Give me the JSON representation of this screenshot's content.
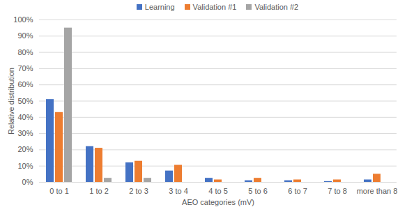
{
  "chart_data": {
    "type": "bar",
    "x_label": "AEO categories (mV)",
    "y_label": "Relative distribution",
    "categories": [
      "0 to 1",
      "1 to 2",
      "2 to 3",
      "3 to 4",
      "4 to 5",
      "5 to 6",
      "6 to 7",
      "7 to 8",
      "more than 8"
    ],
    "series": [
      {
        "name": "Learning",
        "color": "#4472c4",
        "values": [
          51,
          22,
          12,
          7,
          2.5,
          1,
          1,
          0.5,
          1.5
        ]
      },
      {
        "name": "Validation #1",
        "color": "#ed7d31",
        "values": [
          43,
          21,
          13,
          10.5,
          1.5,
          2.5,
          1.5,
          1.5,
          5
        ]
      },
      {
        "name": "Validation #2",
        "color": "#a5a5a5",
        "values": [
          95,
          2.5,
          2.5,
          0,
          0,
          0,
          0,
          0,
          0
        ]
      }
    ],
    "ylim": [
      0,
      100
    ],
    "yticks": [
      {
        "value": 0,
        "label": "0%"
      },
      {
        "value": 10,
        "label": "10%"
      },
      {
        "value": 20,
        "label": "20%"
      },
      {
        "value": 30,
        "label": "30%"
      },
      {
        "value": 40,
        "label": "40%"
      },
      {
        "value": 50,
        "label": "50%"
      },
      {
        "value": 60,
        "label": "60%"
      },
      {
        "value": 70,
        "label": "70%"
      },
      {
        "value": 80,
        "label": "80%"
      },
      {
        "value": 90,
        "label": "90%"
      },
      {
        "value": 100,
        "label": "100%"
      }
    ],
    "grid": true,
    "legend": "top"
  }
}
